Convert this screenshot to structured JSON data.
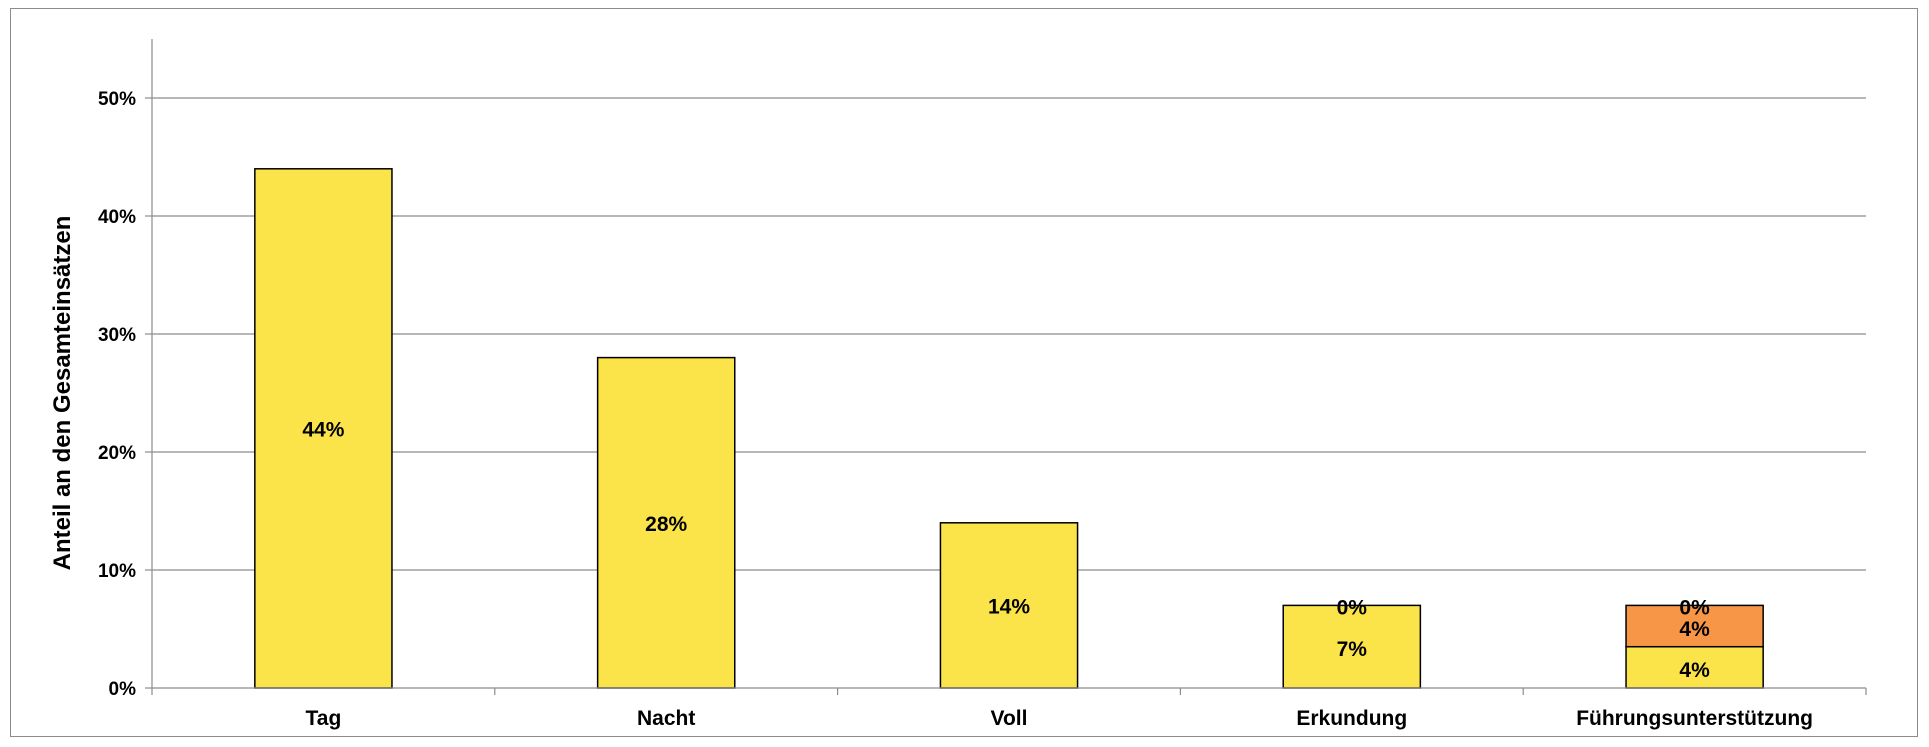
{
  "chart_data": {
    "type": "bar",
    "stacked": true,
    "title": "",
    "xlabel": "",
    "ylabel": "Anteil an den Gesamteinsätzen",
    "ylim": [
      0,
      55
    ],
    "yticks": [
      0,
      10,
      20,
      30,
      40,
      50
    ],
    "ytick_labels": [
      "0%",
      "10%",
      "20%",
      "30%",
      "40%",
      "50%"
    ],
    "grid": true,
    "legend": "none",
    "categories": [
      "Tag",
      "Nacht",
      "Voll",
      "Erkundung",
      "Führungsunterstützung"
    ],
    "series": [
      {
        "values": [
          44,
          28,
          14,
          7,
          3.5
        ],
        "color": "#fbe44a",
        "labels": [
          "44%",
          "28%",
          "14%",
          "7%",
          "4%"
        ]
      },
      {
        "values": [
          0,
          0,
          0,
          0,
          3.5
        ],
        "color": "#f79646",
        "labels": [
          "",
          "",
          "",
          "0%",
          "4%"
        ]
      },
      {
        "values": [
          0,
          0,
          0,
          0,
          0
        ],
        "color": "#c0504d",
        "labels": [
          "",
          "",
          "",
          "",
          "0%"
        ]
      }
    ]
  }
}
